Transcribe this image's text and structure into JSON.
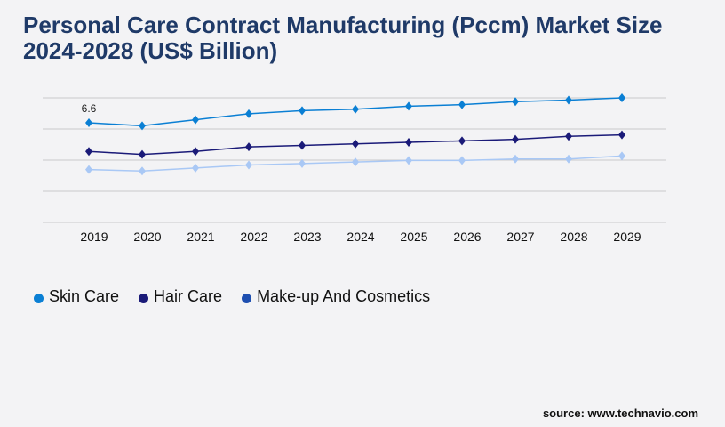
{
  "chart_data": {
    "type": "line",
    "title": "Personal Care Contract Manufacturing (Pccm) Market Size 2024-2028 (US$ Billion)",
    "x": [
      "2019",
      "2020",
      "2021",
      "2022",
      "2023",
      "2024",
      "2025",
      "2026",
      "2027",
      "2028",
      "2029"
    ],
    "ylim": [
      0,
      8.25
    ],
    "grid": true,
    "legend_position": "bottom-left",
    "annotations": [
      {
        "series": "Skin Care",
        "x": "2019",
        "label": "6.6"
      }
    ],
    "series": [
      {
        "name": "Skin Care",
        "color": "#0a7fd4",
        "marker_color": "#0a7fd4",
        "values": [
          6.6,
          6.4,
          6.8,
          7.2,
          7.4,
          7.5,
          7.7,
          7.8,
          8.0,
          8.1,
          8.25
        ]
      },
      {
        "name": "Hair Care",
        "color": "#1a1a78",
        "marker_color": "#1a1a78",
        "values": [
          4.7,
          4.5,
          4.7,
          5.0,
          5.1,
          5.2,
          5.3,
          5.4,
          5.5,
          5.7,
          5.8
        ]
      },
      {
        "name": "Make-up And Cosmetics",
        "color": "#a9c8f5",
        "marker_color": "#1e4fb0",
        "values": [
          3.5,
          3.4,
          3.6,
          3.8,
          3.9,
          4.0,
          4.1,
          4.1,
          4.2,
          4.2,
          4.4
        ]
      }
    ]
  },
  "source": "source: www.technavio.com"
}
